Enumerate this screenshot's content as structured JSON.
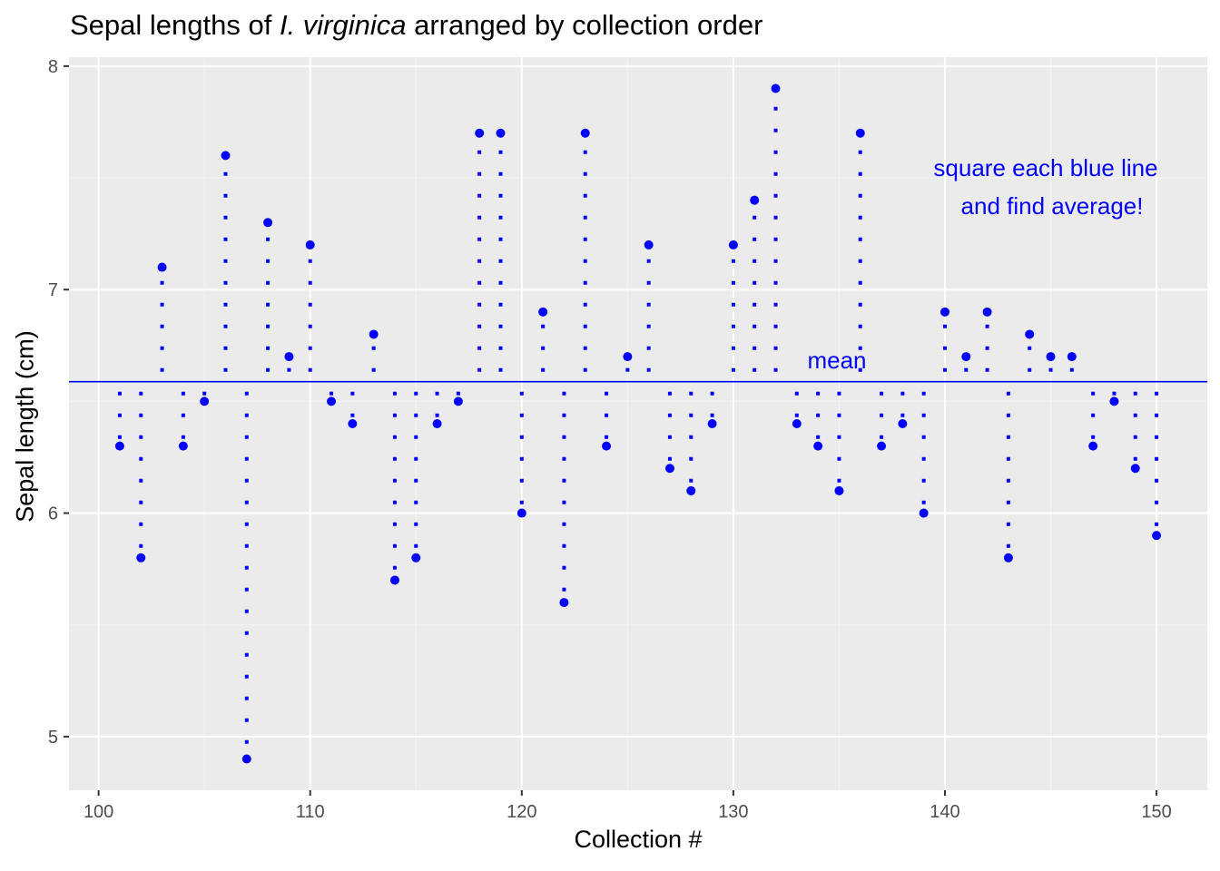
{
  "colors": {
    "panel": "#EBEBEB",
    "grid_major": "#FFFFFF",
    "grid_minor": "#F5F5F5",
    "series": "#0000FF",
    "tick_text": "#4D4D4D"
  },
  "chart_data": {
    "type": "scatter",
    "title": {
      "prefix": "Sepal lengths of ",
      "italic": "I. virginica",
      "suffix": " arranged by collection order"
    },
    "xlabel": "Collection #",
    "ylabel": "Sepal length (cm)",
    "xlim": [
      98.6,
      152.4
    ],
    "ylim": [
      4.76,
      8.04
    ],
    "x_ticks": [
      100,
      110,
      120,
      130,
      140,
      150
    ],
    "y_ticks": [
      5,
      6,
      7,
      8
    ],
    "grid": true,
    "mean": 6.588,
    "mean_label": "mean",
    "annotation": [
      "square each blue line",
      "and find average!"
    ],
    "x": [
      101,
      102,
      103,
      104,
      105,
      106,
      107,
      108,
      109,
      110,
      111,
      112,
      113,
      114,
      115,
      116,
      117,
      118,
      119,
      120,
      121,
      122,
      123,
      124,
      125,
      126,
      127,
      128,
      129,
      130,
      131,
      132,
      133,
      134,
      135,
      136,
      137,
      138,
      139,
      140,
      141,
      142,
      143,
      144,
      145,
      146,
      147,
      148,
      149,
      150
    ],
    "y": [
      6.3,
      5.8,
      7.1,
      6.3,
      6.5,
      7.6,
      4.9,
      7.3,
      6.7,
      7.2,
      6.5,
      6.4,
      6.8,
      5.7,
      5.8,
      6.4,
      6.5,
      7.7,
      7.7,
      6.0,
      6.9,
      5.6,
      7.7,
      6.3,
      6.7,
      7.2,
      6.2,
      6.1,
      6.4,
      7.2,
      7.4,
      7.9,
      6.4,
      6.3,
      6.1,
      7.7,
      6.3,
      6.4,
      6.0,
      6.9,
      6.7,
      6.9,
      5.8,
      6.8,
      6.7,
      6.7,
      6.3,
      6.5,
      6.2,
      5.9
    ],
    "segments": "dotted vertical line from each point to the mean"
  }
}
